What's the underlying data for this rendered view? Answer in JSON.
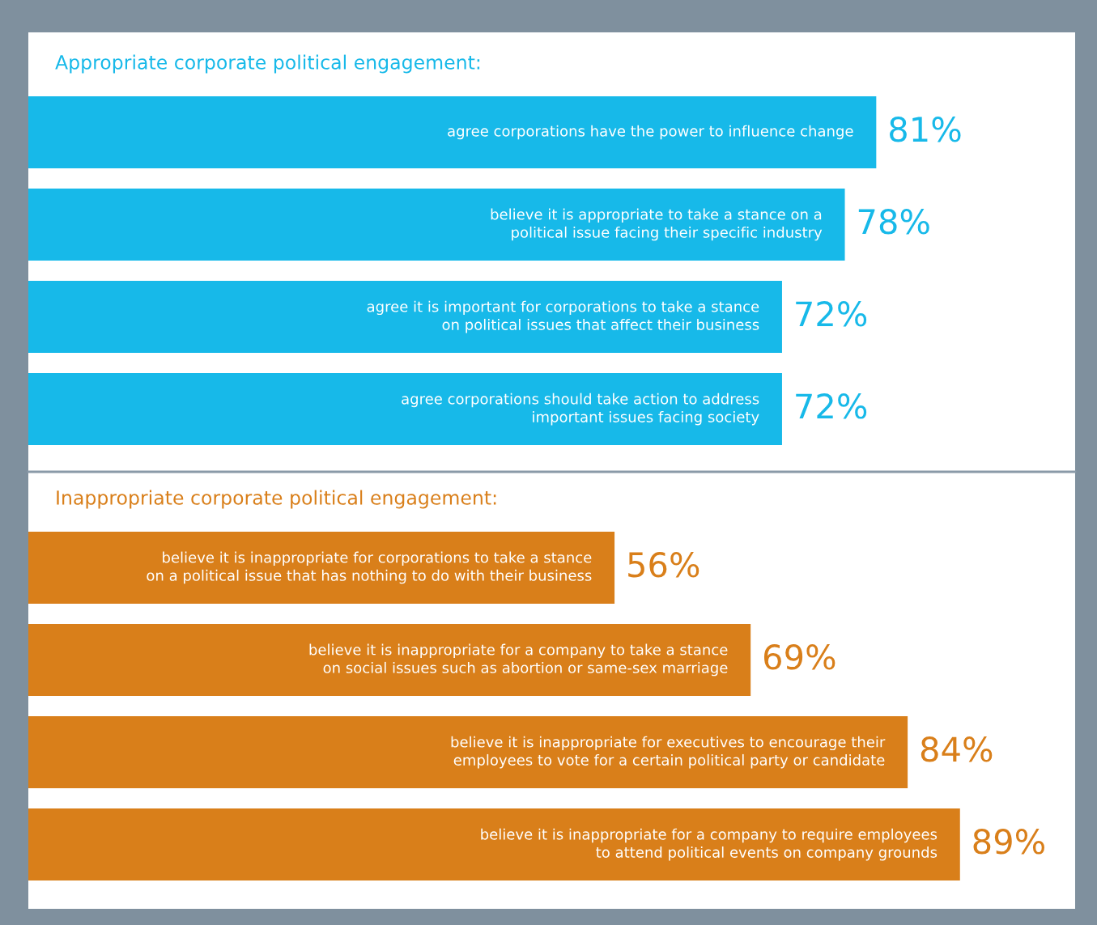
{
  "chart_data": [
    {
      "type": "bar",
      "orientation": "horizontal",
      "title": "Appropriate corporate political engagement:",
      "categories": [
        "agree corporations have the power to influence change",
        "believe it is appropriate to take a stance on a\npolitical issue facing their specific industry",
        "agree it is important for corporations to take a stance\non political issues that affect their business",
        "agree corporations should take action to address\nimportant issues facing society"
      ],
      "values": [
        81,
        78,
        72,
        72
      ],
      "value_labels": [
        "81%",
        "78%",
        "72%",
        "72%"
      ],
      "color": "#17b9e9",
      "xlim": [
        0,
        100
      ],
      "tick_labels": false
    },
    {
      "type": "bar",
      "orientation": "horizontal",
      "title": "Inappropriate corporate political engagement:",
      "categories": [
        "believe it is inappropriate for corporations to take a stance\non a political issue that has nothing to do with their business",
        "believe it is inappropriate for a company to take a stance\non social issues such as abortion or same-sex marriage",
        "believe it is inappropriate for executives to encourage their\nemployees to vote for a certain political party or candidate",
        "believe it is inappropriate for a company to require employees\nto attend political events on company grounds"
      ],
      "values": [
        56,
        69,
        84,
        89
      ],
      "value_labels": [
        "56%",
        "69%",
        "84%",
        "89%"
      ],
      "color": "#d97f1a",
      "xlim": [
        0,
        100
      ],
      "tick_labels": false
    }
  ]
}
